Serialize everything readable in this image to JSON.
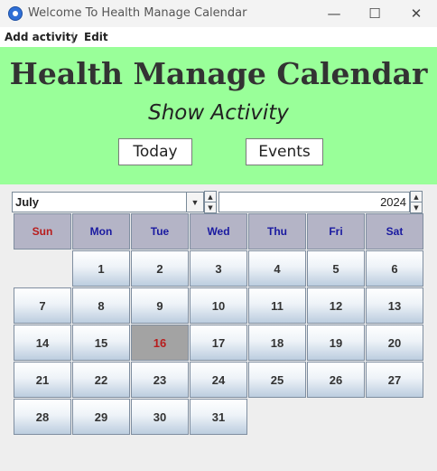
{
  "window": {
    "title": "Welcome To Health Manage Calendar",
    "minimize": "—",
    "maximize": "☐",
    "close": "✕"
  },
  "menu": {
    "items": [
      "Add activity",
      "Edit"
    ],
    "separator": "|"
  },
  "header": {
    "title": "Health Manage Calendar",
    "subtitle": "Show Activity",
    "today_button": "Today",
    "events_button": "Events",
    "background_color": "#99ff99"
  },
  "calendar": {
    "month": "July",
    "year": "2024",
    "weekdays": [
      "Sun",
      "Mon",
      "Tue",
      "Wed",
      "Thu",
      "Fri",
      "Sat"
    ],
    "first_weekday_index": 1,
    "days_in_month": 31,
    "today": 16,
    "today_color": "#b81c1c",
    "weekday_color": "#1a1aa0"
  }
}
